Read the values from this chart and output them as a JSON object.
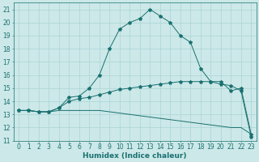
{
  "xlabel": "Humidex (Indice chaleur)",
  "ylabel": "",
  "xlim": [
    -0.5,
    23.5
  ],
  "ylim": [
    11,
    21.5
  ],
  "yticks": [
    11,
    12,
    13,
    14,
    15,
    16,
    17,
    18,
    19,
    20,
    21
  ],
  "xticks": [
    0,
    1,
    2,
    3,
    4,
    5,
    6,
    7,
    8,
    9,
    10,
    11,
    12,
    13,
    14,
    15,
    16,
    17,
    18,
    19,
    20,
    21,
    22,
    23
  ],
  "bg_color": "#cce8e8",
  "line_color": "#1a7070",
  "grid_color": "#aad4d4",
  "line1_x": [
    0,
    1,
    2,
    3,
    4,
    5,
    6,
    7,
    8,
    9,
    10,
    11,
    12,
    13,
    14,
    15,
    16,
    17,
    18,
    19,
    20,
    21,
    22,
    23
  ],
  "line1_y": [
    13.3,
    13.3,
    13.2,
    13.2,
    13.5,
    14.3,
    14.4,
    15.0,
    16.0,
    18.0,
    19.5,
    20.0,
    20.3,
    21.0,
    20.5,
    20.0,
    19.0,
    18.5,
    16.5,
    15.5,
    15.3,
    15.2,
    14.8,
    11.3
  ],
  "line2_x": [
    0,
    1,
    2,
    3,
    4,
    5,
    6,
    7,
    8,
    9,
    10,
    11,
    12,
    13,
    14,
    15,
    16,
    17,
    18,
    19,
    20,
    21,
    22,
    23
  ],
  "line2_y": [
    13.3,
    13.3,
    13.2,
    13.2,
    13.5,
    14.0,
    14.2,
    14.3,
    14.5,
    14.7,
    14.9,
    15.0,
    15.1,
    15.2,
    15.3,
    15.4,
    15.5,
    15.5,
    15.5,
    15.5,
    15.5,
    14.8,
    15.0,
    11.5
  ],
  "line3_x": [
    0,
    1,
    2,
    3,
    4,
    5,
    6,
    7,
    8,
    9,
    10,
    11,
    12,
    13,
    14,
    15,
    16,
    17,
    18,
    19,
    20,
    21,
    22,
    23
  ],
  "line3_y": [
    13.3,
    13.3,
    13.2,
    13.2,
    13.3,
    13.3,
    13.3,
    13.3,
    13.3,
    13.2,
    13.1,
    13.0,
    12.9,
    12.8,
    12.7,
    12.6,
    12.5,
    12.4,
    12.3,
    12.2,
    12.1,
    12.0,
    12.0,
    11.5
  ],
  "marker": "*",
  "markersize": 3.0,
  "linewidth": 0.7,
  "tick_fontsize": 5.5,
  "xlabel_fontsize": 6.5
}
